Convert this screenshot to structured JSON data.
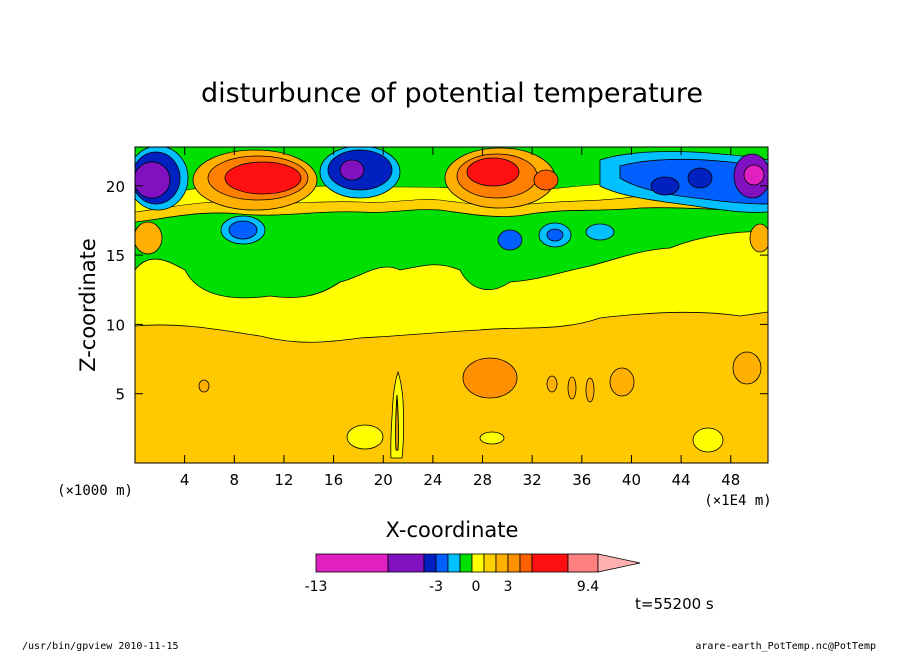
{
  "chart_data": {
    "type": "heatmap",
    "title": "disturbunce of potential temperature",
    "xlabel": "X-coordinate",
    "ylabel": "Z-coordinate",
    "x_scale_note": "(×1E4 m)",
    "y_scale_note": "(×1000 m)",
    "x_ticks": [
      "4",
      "8",
      "12",
      "16",
      "20",
      "24",
      "28",
      "32",
      "36",
      "40",
      "44",
      "48"
    ],
    "y_ticks": [
      "5",
      "10",
      "15",
      "20"
    ],
    "xlim": [
      0,
      51
    ],
    "ylim": [
      0,
      22.8
    ],
    "colorbar": {
      "labels": [
        "-13",
        "-3",
        "0",
        "3",
        "9.4"
      ],
      "colors": [
        "#e020c0",
        "#8010c0",
        "#0020c0",
        "#0060ff",
        "#00c0ff",
        "#00e000",
        "#ffff00",
        "#ffd000",
        "#ffb000",
        "#ff9000",
        "#ff6000",
        "#ff1010",
        "#ff8080",
        "#ffb0b0"
      ]
    },
    "features": [
      {
        "level": "yellow",
        "where": "band z 10-16, full width"
      },
      {
        "level": "warm",
        "center": [
          9.5,
          20.5
        ],
        "label": "red max"
      },
      {
        "level": "warm",
        "center": [
          28,
          20.6
        ],
        "label": "red max"
      },
      {
        "level": "cold",
        "center": [
          1.5,
          20.3
        ],
        "label": "purple min"
      },
      {
        "level": "cold",
        "center": [
          49.7,
          20.5
        ],
        "label": "magenta min"
      },
      {
        "level": "orange",
        "center": [
          28.8,
          6.1
        ],
        "label": "orange blob"
      }
    ]
  },
  "annotations": {
    "time": "t=55200 s",
    "footer_left": "/usr/bin/gpview   2010-11-15",
    "footer_right": "arare-earth_PotTemp.nc@PotTemp"
  }
}
